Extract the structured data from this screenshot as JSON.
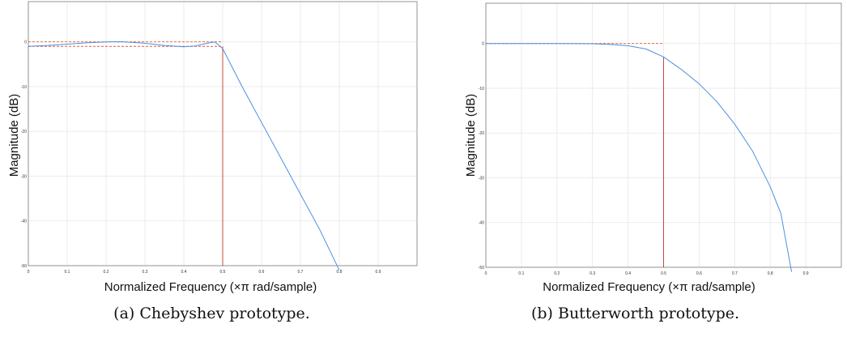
{
  "chart_data": [
    {
      "type": "line",
      "title": "",
      "xlabel": "Normalized Frequency (×π rad/sample)",
      "ylabel": "Magnitude (dB)",
      "caption": "(a) Chebyshev prototype.",
      "xlim": [
        0,
        1.0
      ],
      "ylim": [
        -50,
        9
      ],
      "xticks": [
        "0",
        "0.1",
        "0.2",
        "0.3",
        "0.4",
        "0.5",
        "0.6",
        "0.7",
        "0.8",
        "0.9"
      ],
      "xtick_values": [
        0,
        0.1,
        0.2,
        0.3,
        0.4,
        0.5,
        0.6,
        0.7,
        0.8,
        0.9
      ],
      "yticks": [
        "0",
        "-10",
        "-20",
        "-30",
        "-40",
        "-50"
      ],
      "ytick_values": [
        0,
        -10,
        -20,
        -30,
        -40,
        -50
      ],
      "grid": true,
      "series": [
        {
          "color": "#4a90e2",
          "x": [
            0,
            0.05,
            0.1,
            0.15,
            0.2,
            0.24,
            0.3,
            0.35,
            0.4,
            0.43,
            0.46,
            0.48,
            0.5,
            0.55,
            0.6,
            0.65,
            0.7,
            0.75,
            0.8
          ],
          "y": [
            -1,
            -0.8,
            -0.5,
            -0.2,
            0,
            0.05,
            -0.3,
            -0.8,
            -1.1,
            -0.9,
            -0.3,
            0,
            -1.5,
            -10,
            -18,
            -26,
            -34,
            -42,
            -51
          ]
        }
      ],
      "reference_lines": [
        {
          "color": "#e05a3a",
          "style": "dashed",
          "orientation": "horizontal",
          "value": 0,
          "from": 0,
          "to": 0.5
        },
        {
          "color": "#e05a3a",
          "style": "dashed",
          "orientation": "horizontal",
          "value": -1,
          "from": 0,
          "to": 0.5
        },
        {
          "color": "#c0392b",
          "style": "solid",
          "orientation": "vertical",
          "value": 0.5,
          "from": -50,
          "to": -1
        }
      ]
    },
    {
      "type": "line",
      "title": "",
      "xlabel": "Normalized Frequency (×π rad/sample)",
      "ylabel": "Magnitude (dB)",
      "caption": "(b) Butterworth prototype.",
      "xlim": [
        0,
        1.0
      ],
      "ylim": [
        -50,
        9
      ],
      "xticks": [
        "0",
        "0.1",
        "0.2",
        "0.3",
        "0.4",
        "0.5",
        "0.6",
        "0.7",
        "0.8",
        "0.9"
      ],
      "xtick_values": [
        0,
        0.1,
        0.2,
        0.3,
        0.4,
        0.5,
        0.6,
        0.7,
        0.8,
        0.9
      ],
      "yticks": [
        "0",
        "-10",
        "-20",
        "-30",
        "-40",
        "-50"
      ],
      "ytick_values": [
        0,
        -10,
        -20,
        -30,
        -40,
        -50
      ],
      "grid": true,
      "series": [
        {
          "color": "#4a90e2",
          "x": [
            0,
            0.2,
            0.3,
            0.35,
            0.4,
            0.45,
            0.5,
            0.55,
            0.6,
            0.65,
            0.7,
            0.75,
            0.8,
            0.83,
            0.86
          ],
          "y": [
            0,
            0,
            -0.05,
            -0.2,
            -0.5,
            -1.2,
            -3,
            -5.8,
            -9,
            -13,
            -18,
            -24,
            -32,
            -38,
            -51
          ]
        }
      ],
      "reference_lines": [
        {
          "color": "#e05a3a",
          "style": "dashed",
          "orientation": "horizontal",
          "value": 0,
          "from": 0,
          "to": 0.5
        },
        {
          "color": "#c0392b",
          "style": "solid",
          "orientation": "vertical",
          "value": 0.5,
          "from": -50,
          "to": -3
        }
      ]
    }
  ]
}
